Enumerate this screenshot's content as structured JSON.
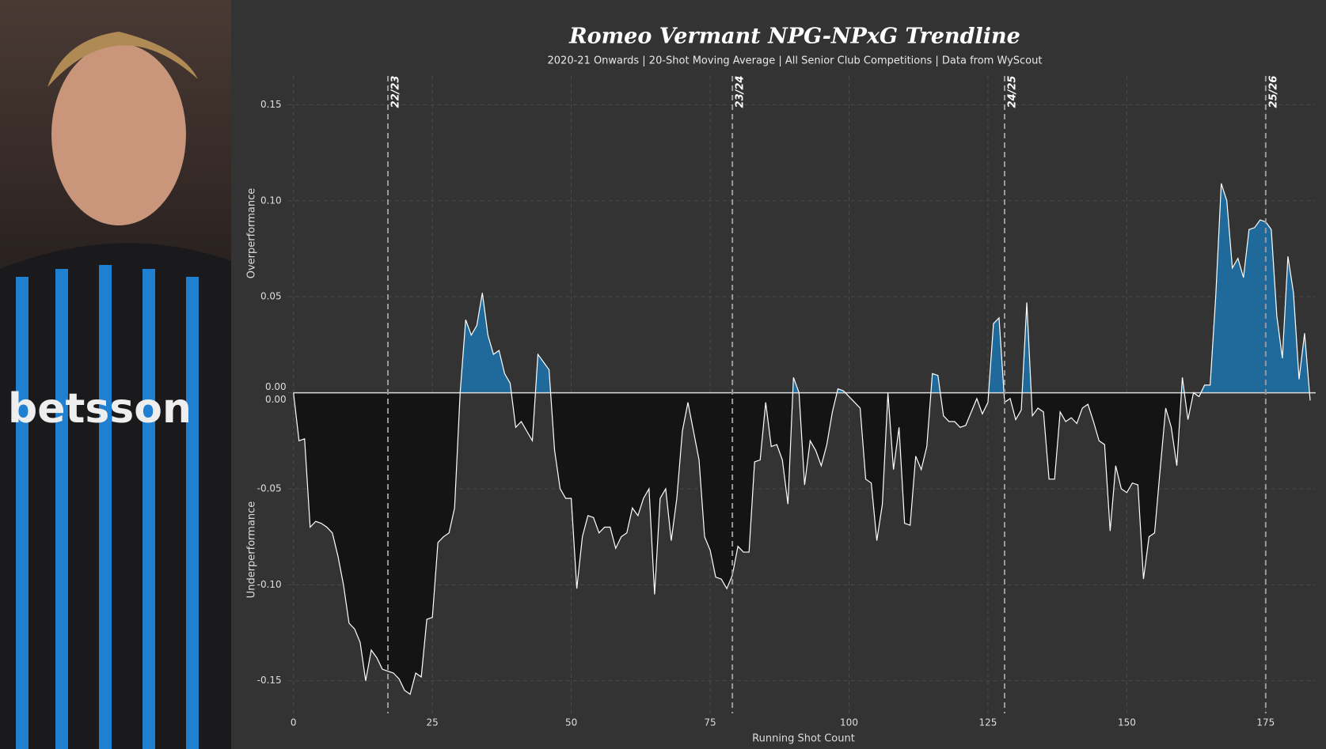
{
  "chart_data": {
    "type": "area",
    "title": "Romeo Vermant NPG-NPxG Trendline",
    "subtitle": "2020-21 Onwards | 20-Shot Moving Average | All Senior Club  Competitions | Data from WyScout",
    "xlabel": "Running Shot Count",
    "ylabel_top": "Overperformance",
    "ylabel_bottom": "Underperformance",
    "x": [
      0,
      1,
      2,
      3,
      4,
      5,
      6,
      7,
      8,
      9,
      10,
      11,
      12,
      13,
      14,
      15,
      16,
      17,
      18,
      19,
      20,
      21,
      22,
      23,
      24,
      25,
      26,
      27,
      28,
      29,
      30,
      31,
      32,
      33,
      34,
      35,
      36,
      37,
      38,
      39,
      40,
      41,
      42,
      43,
      44,
      45,
      46,
      47,
      48,
      49,
      50,
      51,
      52,
      53,
      54,
      55,
      56,
      57,
      58,
      59,
      60,
      61,
      62,
      63,
      64,
      65,
      66,
      67,
      68,
      69,
      70,
      71,
      72,
      73,
      74,
      75,
      76,
      77,
      78,
      79,
      80,
      81,
      82,
      83,
      84,
      85,
      86,
      87,
      88,
      89,
      90,
      91,
      92,
      93,
      94,
      95,
      96,
      97,
      98,
      99,
      100,
      101,
      102,
      103,
      104,
      105,
      106,
      107,
      108,
      109,
      110,
      111,
      112,
      113,
      114,
      115,
      116,
      117,
      118,
      119,
      120,
      121,
      122,
      123,
      124,
      125,
      126,
      127,
      128,
      129,
      130,
      131,
      132,
      133,
      134,
      135,
      136,
      137,
      138,
      139,
      140,
      141,
      142,
      143,
      144,
      145,
      146,
      147,
      148,
      149,
      150,
      151,
      152,
      153,
      154,
      155,
      156,
      157,
      158,
      159,
      160,
      161,
      162,
      163,
      164,
      165,
      166,
      167,
      168,
      169,
      170,
      171,
      172,
      173,
      174,
      175,
      176,
      177,
      178,
      179,
      180,
      181,
      182,
      183
    ],
    "series": [
      {
        "name": "NPG-NPxG",
        "color": "#ffffff",
        "positive_color": "#1f6a9a",
        "negative_color": "#141414",
        "values": [
          0.0,
          -0.025,
          -0.024,
          -0.07,
          -0.067,
          -0.068,
          -0.07,
          -0.073,
          -0.085,
          -0.1,
          -0.12,
          -0.123,
          -0.13,
          -0.15,
          -0.134,
          -0.138,
          -0.144,
          -0.145,
          -0.146,
          -0.149,
          -0.155,
          -0.157,
          -0.146,
          -0.148,
          -0.118,
          -0.117,
          -0.078,
          -0.075,
          -0.073,
          -0.06,
          0.0,
          0.038,
          0.03,
          0.035,
          0.052,
          0.03,
          0.02,
          0.022,
          0.01,
          0.005,
          -0.018,
          -0.015,
          -0.02,
          -0.025,
          0.02,
          0.016,
          0.012,
          -0.03,
          -0.05,
          -0.055,
          -0.055,
          -0.102,
          -0.075,
          -0.064,
          -0.065,
          -0.073,
          -0.07,
          -0.07,
          -0.081,
          -0.075,
          -0.073,
          -0.06,
          -0.064,
          -0.055,
          -0.05,
          -0.105,
          -0.055,
          -0.05,
          -0.077,
          -0.055,
          -0.02,
          -0.005,
          -0.02,
          -0.035,
          -0.075,
          -0.082,
          -0.096,
          -0.097,
          -0.102,
          -0.095,
          -0.08,
          -0.083,
          -0.083,
          -0.036,
          -0.035,
          -0.005,
          -0.028,
          -0.027,
          -0.035,
          -0.058,
          0.008,
          0.0,
          -0.048,
          -0.025,
          -0.03,
          -0.038,
          -0.027,
          -0.01,
          0.002,
          0.001,
          -0.002,
          -0.005,
          -0.008,
          -0.045,
          -0.047,
          -0.077,
          -0.058,
          0.0,
          -0.04,
          -0.018,
          -0.068,
          -0.069,
          -0.033,
          -0.04,
          -0.028,
          0.01,
          0.009,
          -0.012,
          -0.015,
          -0.015,
          -0.018,
          -0.017,
          -0.01,
          -0.003,
          -0.011,
          -0.005,
          0.036,
          0.039,
          -0.005,
          -0.003,
          -0.014,
          -0.009,
          0.047,
          -0.012,
          -0.008,
          -0.01,
          -0.045,
          -0.045,
          -0.01,
          -0.015,
          -0.013,
          -0.016,
          -0.008,
          -0.006,
          -0.015,
          -0.025,
          -0.027,
          -0.072,
          -0.038,
          -0.05,
          -0.052,
          -0.047,
          -0.048,
          -0.097,
          -0.075,
          -0.073,
          -0.04,
          -0.008,
          -0.018,
          -0.038,
          0.008,
          -0.014,
          0.0,
          -0.002,
          0.004,
          0.004,
          0.05,
          0.109,
          0.1,
          0.065,
          0.07,
          0.06,
          0.085,
          0.086,
          0.09,
          0.089,
          0.085,
          0.04,
          0.018,
          0.071,
          0.052,
          0.007,
          0.031,
          -0.004
        ]
      }
    ],
    "seasons": [
      {
        "x": 17,
        "label": "22/23"
      },
      {
        "x": 79,
        "label": "23/24"
      },
      {
        "x": 128,
        "label": "24/25"
      },
      {
        "x": 175,
        "label": "25/26"
      }
    ],
    "xlim": [
      -1,
      184
    ],
    "ylim": [
      -0.167,
      0.165
    ],
    "xticks": [
      0,
      25,
      50,
      75,
      100,
      125,
      150,
      175
    ],
    "yticks": [
      {
        "value": -0.15,
        "label": "-0.15"
      },
      {
        "value": -0.1,
        "label": "-0.10"
      },
      {
        "value": -0.05,
        "label": "-0.05"
      },
      {
        "value": 0,
        "label": "0.00"
      },
      {
        "value": 0.05,
        "label": "0.05"
      },
      {
        "value": 0.1,
        "label": "0.10"
      },
      {
        "value": 0.15,
        "label": "0.15"
      }
    ],
    "grid": true
  }
}
